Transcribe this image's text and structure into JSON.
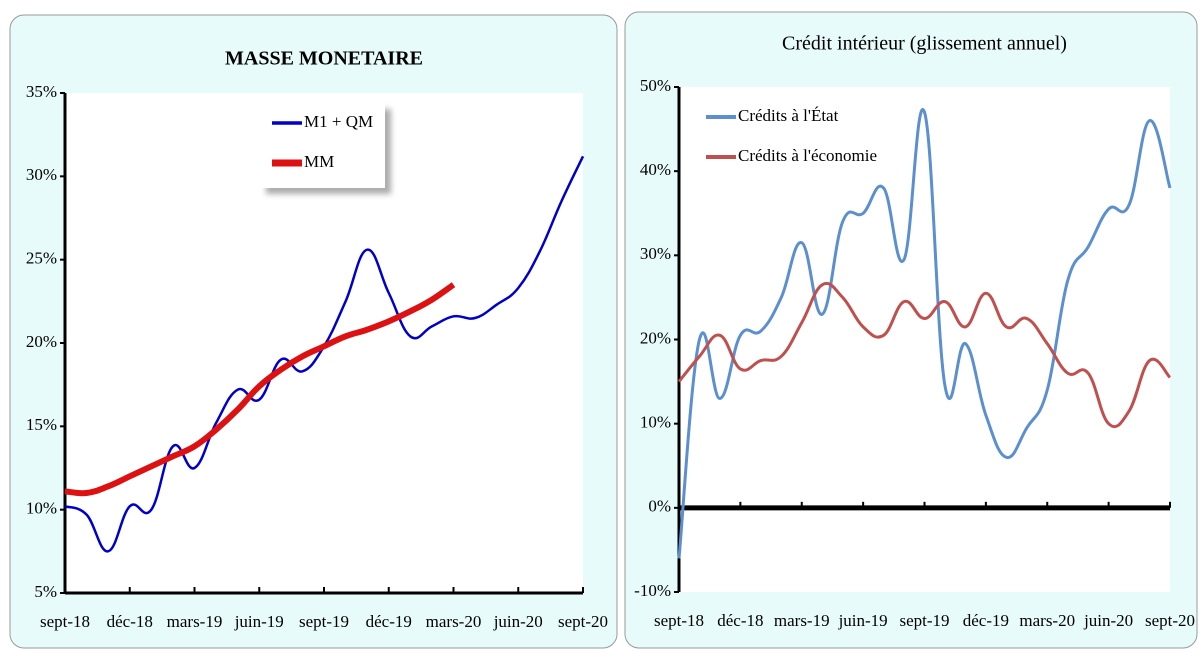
{
  "chart_data": [
    {
      "type": "line",
      "title": "MASSE MONETAIRE",
      "categories": [
        "sept-18",
        null,
        null,
        "déc-18",
        null,
        null,
        "mars-19",
        null,
        null,
        "juin-19",
        null,
        null,
        "sept-19",
        null,
        null,
        "déc-19",
        null,
        null,
        "mars-20",
        null,
        null,
        "juin-20",
        null,
        null,
        "sept-20"
      ],
      "series": [
        {
          "name": "M1 + QM",
          "color": "#0000cc",
          "values": [
            10.2,
            9.7,
            7.5,
            10.2,
            10.0,
            13.8,
            12.5,
            15.2,
            17.2,
            16.6,
            19.0,
            18.3,
            19.8,
            22.5,
            25.6,
            23.0,
            20.4,
            21.0,
            21.6,
            21.5,
            22.3,
            23.3,
            25.5,
            28.5,
            31.2
          ]
        },
        {
          "name": "MM",
          "color": "#dd1111",
          "values": [
            11.1,
            11.0,
            11.4,
            12.0,
            12.6,
            13.2,
            13.8,
            14.8,
            16.0,
            17.4,
            18.4,
            19.2,
            19.8,
            20.4,
            20.8,
            21.3,
            21.9,
            22.6,
            23.5,
            null,
            null,
            null,
            null,
            null,
            null
          ]
        }
      ],
      "ylim": [
        5,
        35
      ],
      "yticks": [
        {
          "value": 5,
          "label": "5%"
        },
        {
          "value": 10,
          "label": "10%"
        },
        {
          "value": 15,
          "label": "15%"
        },
        {
          "value": 20,
          "label": "20%"
        },
        {
          "value": 25,
          "label": "25%"
        },
        {
          "value": 30,
          "label": "30%"
        },
        {
          "value": 35,
          "label": "35%"
        }
      ],
      "legend": "upper center"
    },
    {
      "type": "line",
      "title": "Crédit intérieur (glissement annuel)",
      "categories": [
        "sept-18",
        null,
        null,
        "déc-18",
        null,
        null,
        "mars-19",
        null,
        null,
        "juin-19",
        null,
        null,
        "sept-19",
        null,
        null,
        "déc-19",
        null,
        null,
        "mars-20",
        null,
        null,
        "juin-20",
        null,
        null,
        "sept-20"
      ],
      "series": [
        {
          "name": "Crédits à l'État",
          "color": "#5b8fd0",
          "values": [
            -6,
            20,
            13,
            20.5,
            21,
            25,
            31.5,
            23,
            34,
            35,
            38,
            29.5,
            47,
            14.5,
            19.5,
            11,
            6,
            9.5,
            14,
            27,
            31,
            35.5,
            36,
            46,
            38
          ]
        },
        {
          "name": "Crédits à l'économie",
          "color": "#c0504d",
          "values": [
            15,
            18,
            20.5,
            16.5,
            17.5,
            18,
            22,
            26.5,
            25,
            21.5,
            20.5,
            24.5,
            22.5,
            24.5,
            21.5,
            25.5,
            21.5,
            22.5,
            19.5,
            16,
            16,
            10,
            11.5,
            17.5,
            15.5
          ]
        }
      ],
      "ylim": [
        -10,
        50
      ],
      "yticks": [
        {
          "value": -10,
          "label": "-10%"
        },
        {
          "value": 0,
          "label": "0%"
        },
        {
          "value": 10,
          "label": "10%"
        },
        {
          "value": 20,
          "label": "20%"
        },
        {
          "value": 30,
          "label": "30%"
        },
        {
          "value": 40,
          "label": "40%"
        },
        {
          "value": 50,
          "label": "50%"
        }
      ],
      "legend": "upper left"
    }
  ]
}
